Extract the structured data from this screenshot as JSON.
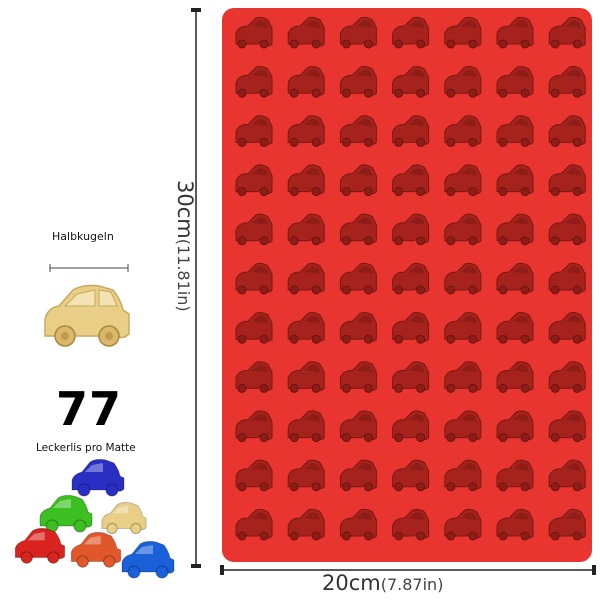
{
  "product": {
    "shape_label": "Halbkugeln",
    "count": "77",
    "count_label": "Leckerlis pro Matte",
    "width_main": "20cm",
    "width_sub": "(7.87in)",
    "height_main": "30cm",
    "height_sub": "(11.81in)"
  },
  "mat": {
    "columns": 7,
    "rows": 11,
    "mat_color": "#e9352f",
    "cavity_color": "#a6231d"
  },
  "sample_cars": [
    {
      "name": "blue",
      "color": "#2a2fc4"
    },
    {
      "name": "green",
      "color": "#3cc021"
    },
    {
      "name": "beige",
      "color": "#e9cf86"
    },
    {
      "name": "red",
      "color": "#d8231e"
    },
    {
      "name": "orange",
      "color": "#e0582a"
    },
    {
      "name": "lightblue",
      "color": "#1a60d8"
    }
  ]
}
